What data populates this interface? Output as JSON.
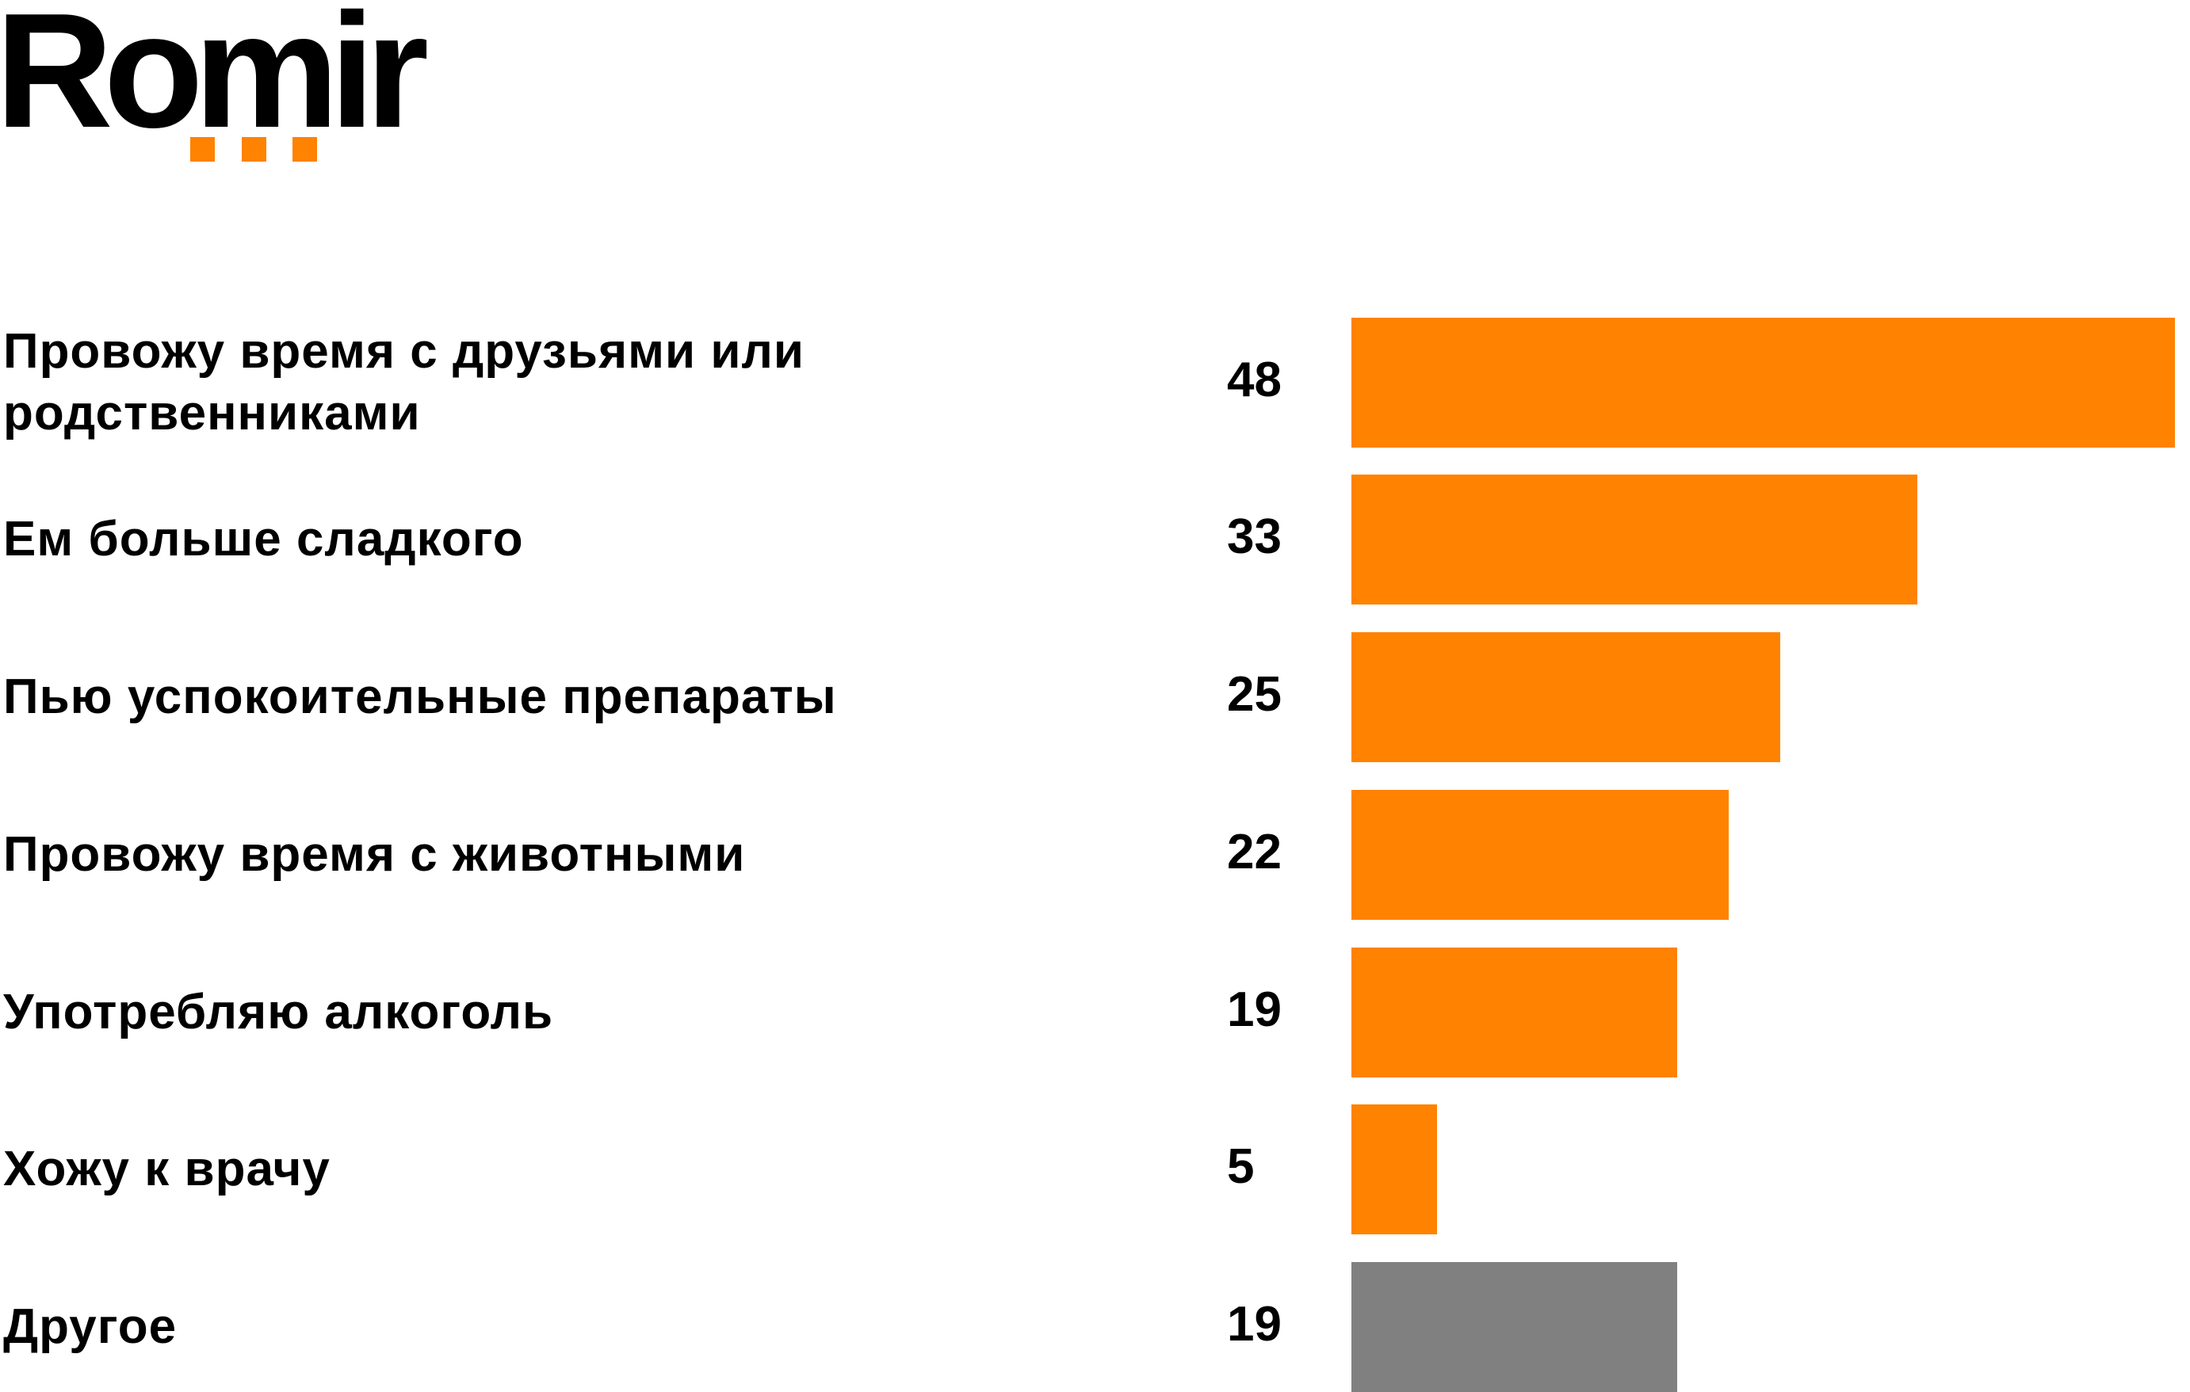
{
  "logo": {
    "text": "Romir",
    "dots_color": "#FF8200"
  },
  "colors": {
    "primary_bar": "#FF8200",
    "other_bar": "#808080"
  },
  "chart_data": {
    "type": "bar",
    "orientation": "horizontal",
    "title": "",
    "xlabel": "",
    "ylabel": "",
    "categories": [
      "Провожу время с друзьями или родственниками",
      "Ем больше сладкого",
      "Пью успокоительные препараты",
      "Провожу время с животными",
      "Употребляю алкоголь",
      "Хожу к врачу",
      "Другое"
    ],
    "values": [
      48,
      33,
      25,
      22,
      19,
      5,
      19
    ],
    "bar_colors": [
      "#FF8200",
      "#FF8200",
      "#FF8200",
      "#FF8200",
      "#FF8200",
      "#FF8200",
      "#808080"
    ],
    "grid": false,
    "legend": "none",
    "xlim": [
      0,
      48
    ]
  },
  "rows": [
    {
      "label": "Провожу время с друзьями или родственниками",
      "value": "48"
    },
    {
      "label": "Ем больше сладкого",
      "value": "33"
    },
    {
      "label": "Пью успокоительные препараты",
      "value": "25"
    },
    {
      "label": "Провожу время с животными",
      "value": "22"
    },
    {
      "label": "Употребляю алкоголь",
      "value": "19"
    },
    {
      "label": "Хожу к врачу",
      "value": "5"
    },
    {
      "label": "Другое",
      "value": "19"
    }
  ]
}
